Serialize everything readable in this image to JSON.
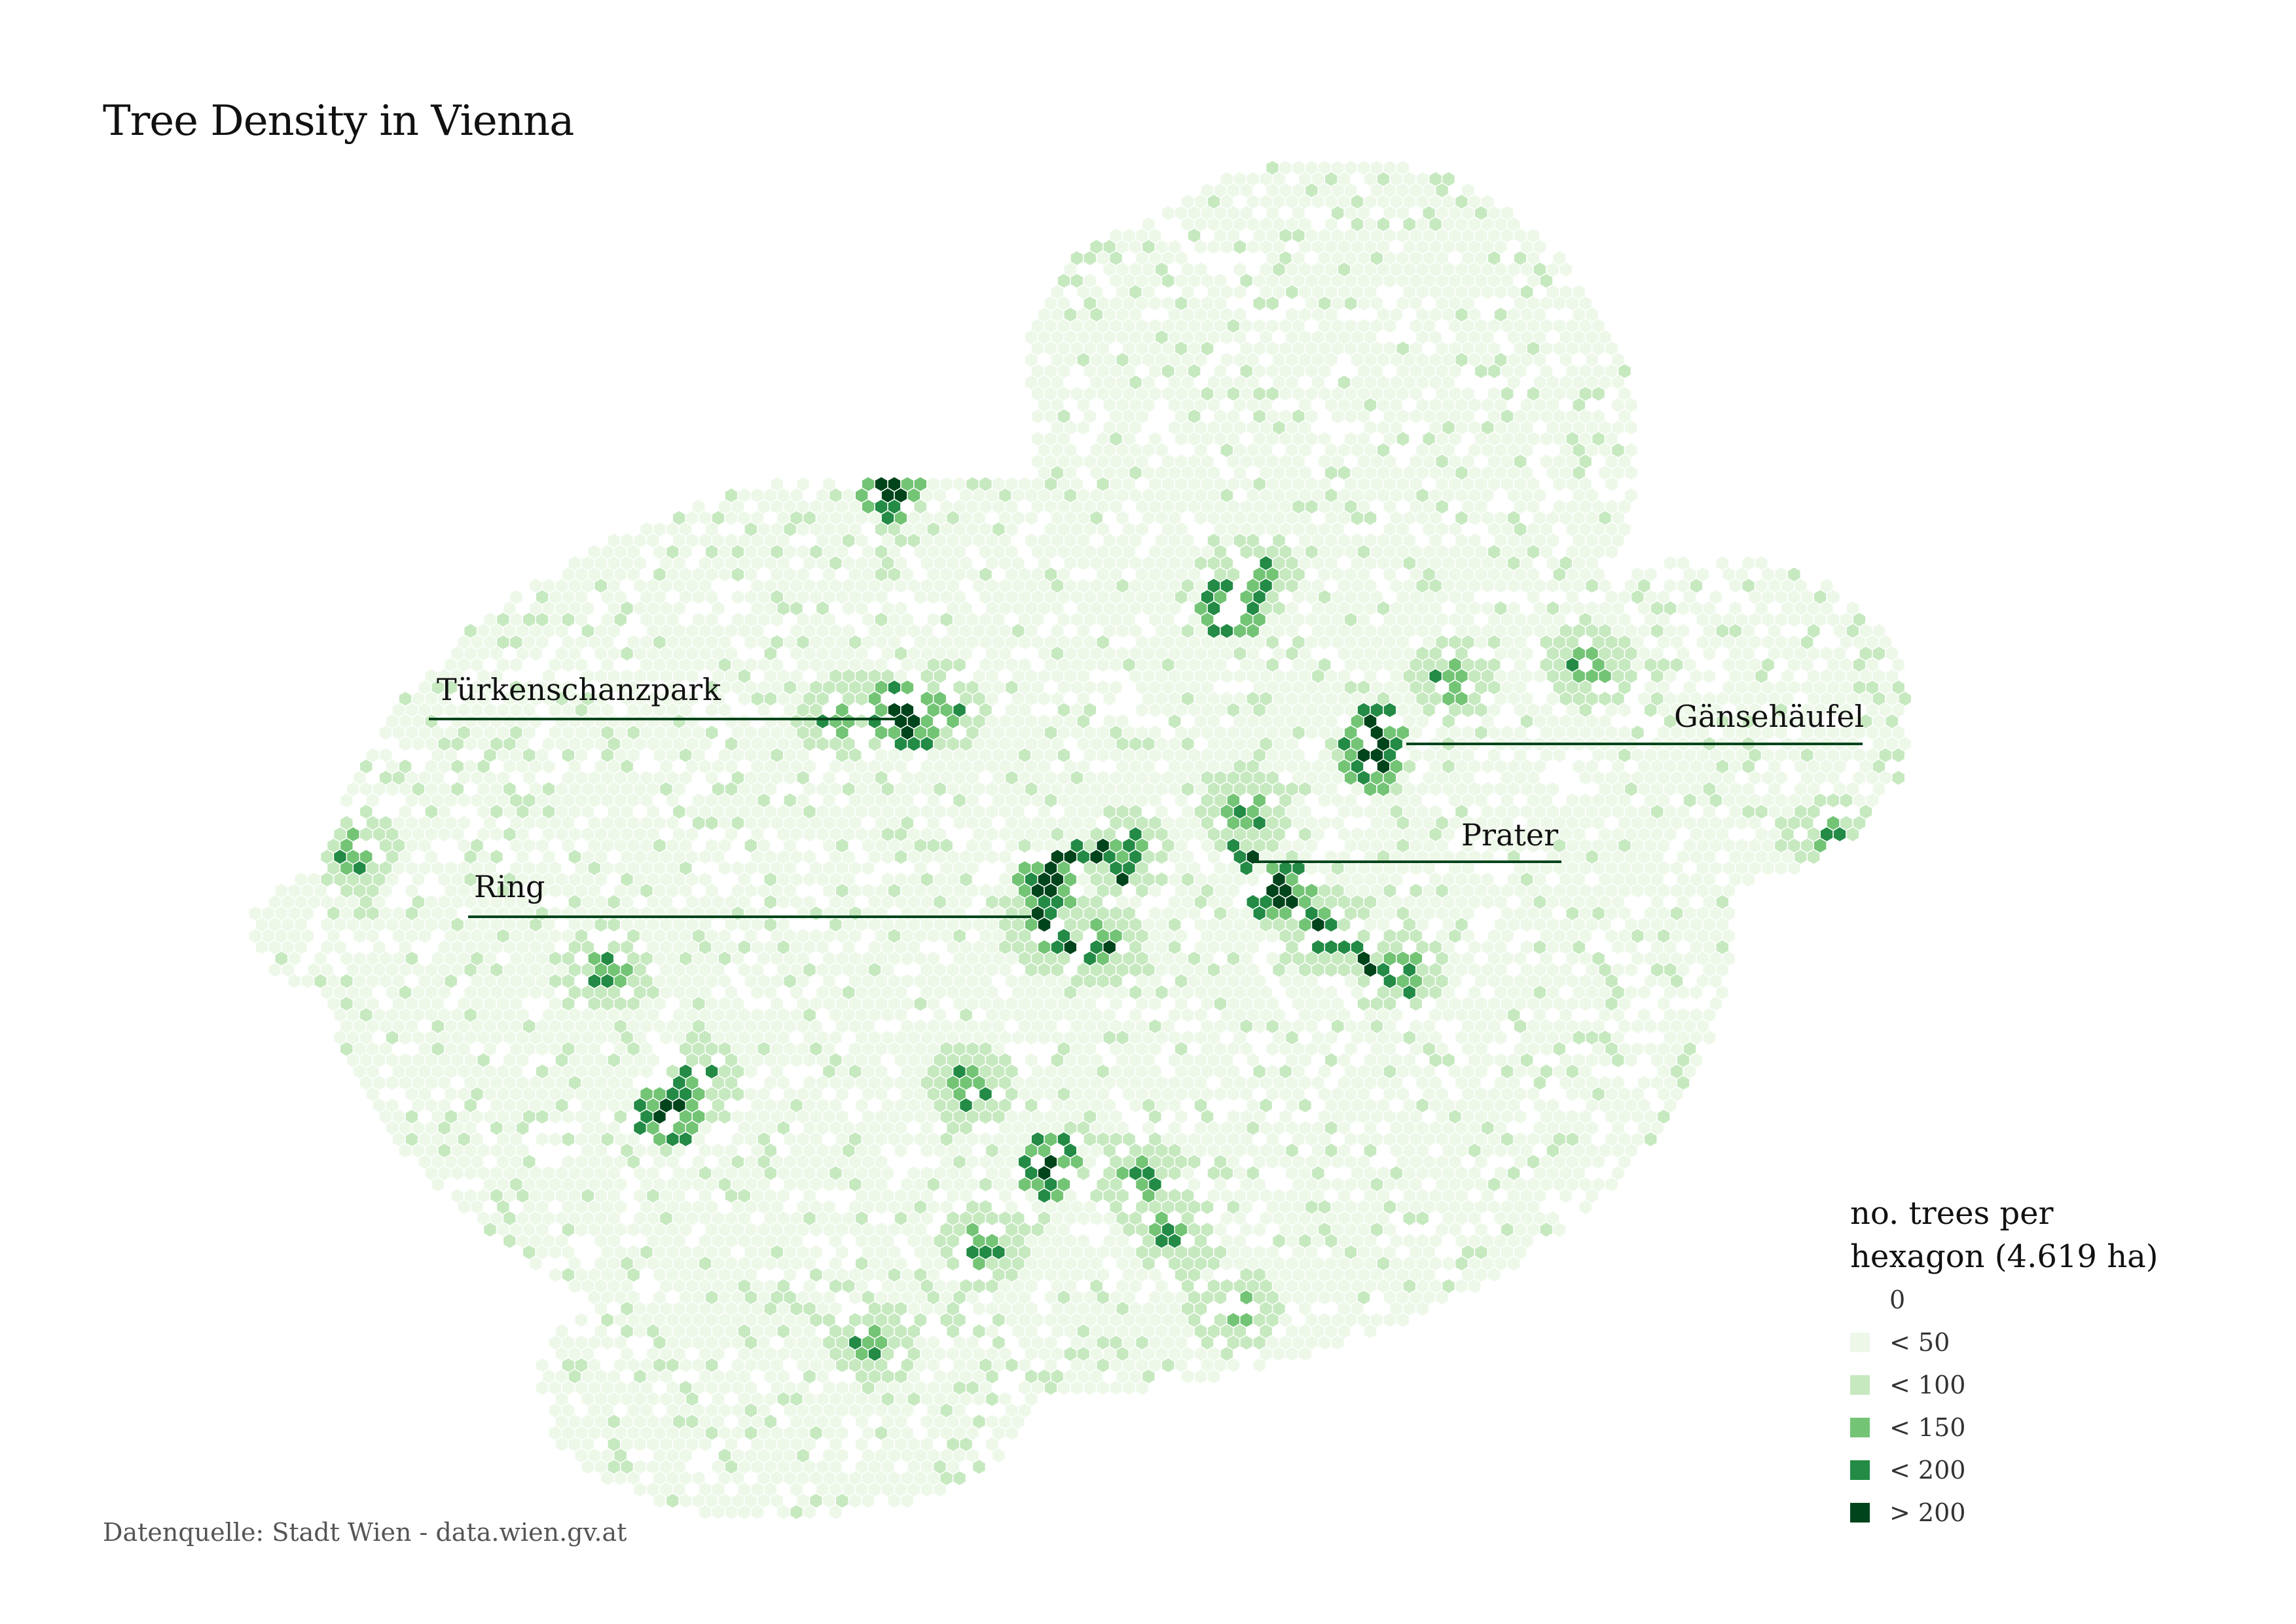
{
  "title": "Tree Density in Vienna",
  "source": "Datenquelle: Stadt Wien - data.wien.gv.at",
  "legend": {
    "title_line1": "no. trees per",
    "title_line2": "hexagon (4.619 ha)",
    "items": [
      {
        "label": "0",
        "color": "#ffffff"
      },
      {
        "label": "< 50",
        "color": "#edf8e9"
      },
      {
        "label": "< 100",
        "color": "#c7e9c0"
      },
      {
        "label": "< 150",
        "color": "#74c476"
      },
      {
        "label": "< 200",
        "color": "#238b45"
      },
      {
        "label": "> 200",
        "color": "#00441b"
      }
    ]
  },
  "annotations": {
    "tuerkenschanzpark": "Türkenschanzpark",
    "ring": "Ring",
    "prater": "Prater",
    "gaensehaeufel": "Gänsehäufel"
  },
  "map": {
    "type": "hexbin-choropleth",
    "region": "Vienna",
    "hexagon_area": "4.619 ha",
    "annotation_line_color": "#00441b"
  }
}
